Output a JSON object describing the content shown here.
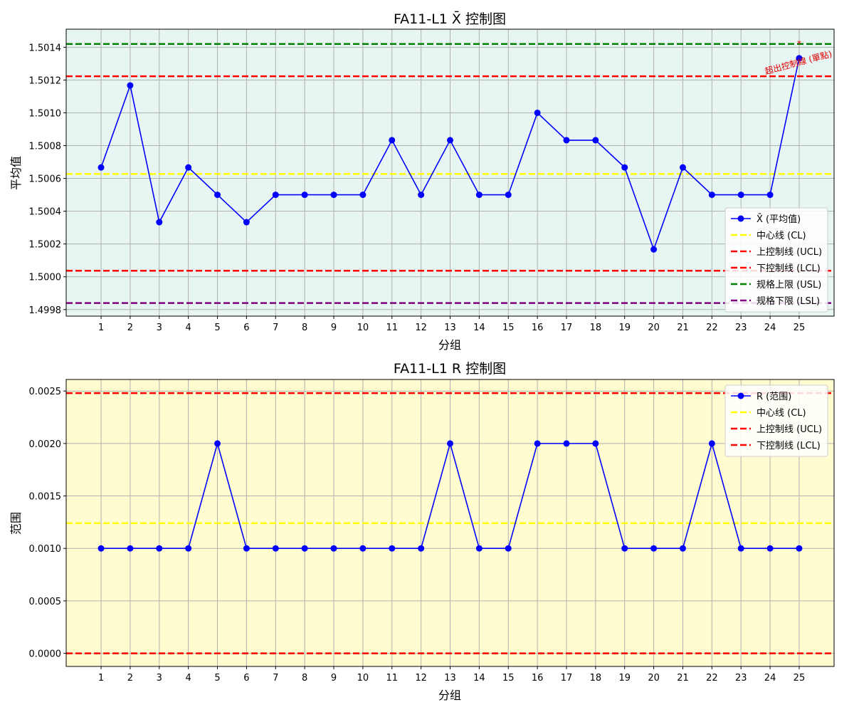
{
  "chart_data": [
    {
      "type": "line",
      "title": "FA11-L1 X̄ 控制图",
      "xlabel": "分组",
      "ylabel": "平均值",
      "background": "#e8f6f3",
      "x": [
        1,
        2,
        3,
        4,
        5,
        6,
        7,
        8,
        9,
        10,
        11,
        12,
        13,
        14,
        15,
        16,
        17,
        18,
        19,
        20,
        21,
        22,
        23,
        24,
        25
      ],
      "xlim": [
        -0.2,
        26.2
      ],
      "ylim": [
        1.49976,
        1.50151
      ],
      "yticks": [
        "1.4998",
        "1.5000",
        "1.5002",
        "1.5004",
        "1.5006",
        "1.5008",
        "1.5010",
        "1.5012",
        "1.5014"
      ],
      "grid": true,
      "series": [
        {
          "name": "X̄ (平均值)",
          "color": "#0000ff",
          "values": [
            1.500667,
            1.501167,
            1.500333,
            1.500667,
            1.5005,
            1.500333,
            1.5005,
            1.5005,
            1.5005,
            1.5005,
            1.500833,
            1.5005,
            1.500833,
            1.5005,
            1.5005,
            1.501,
            1.500833,
            1.500833,
            1.500667,
            1.500167,
            1.500667,
            1.5005,
            1.5005,
            1.5005,
            1.501333
          ]
        }
      ],
      "lines": [
        {
          "name": "中心线 (CL)",
          "value": 1.500627,
          "color": "#ffff00"
        },
        {
          "name": "上控制线 (UCL)",
          "value": 1.501223,
          "color": "#ff0000"
        },
        {
          "name": "下控制线 (LCL)",
          "value": 1.500037,
          "color": "#ff0000"
        },
        {
          "name": "规格上限 (USL)",
          "value": 1.50142,
          "color": "#008000"
        },
        {
          "name": "规格下限 (LSL)",
          "value": 1.49984,
          "color": "#800080"
        }
      ],
      "legend": "lower-right",
      "annotations": [
        {
          "text": "超出控制線 (單點)",
          "x": 25,
          "y": 1.50125
        },
        {
          "text": "*",
          "x": 25,
          "y": 1.50143
        }
      ]
    },
    {
      "type": "line",
      "title": "FA11-L1 R 控制图",
      "xlabel": "分组",
      "ylabel": "范围",
      "background": "#fffcd0",
      "x": [
        1,
        2,
        3,
        4,
        5,
        6,
        7,
        8,
        9,
        10,
        11,
        12,
        13,
        14,
        15,
        16,
        17,
        18,
        19,
        20,
        21,
        22,
        23,
        24,
        25
      ],
      "xlim": [
        -0.2,
        26.2
      ],
      "ylim": [
        -0.000125,
        0.00261
      ],
      "yticks": [
        "0.0000",
        "0.0005",
        "0.0010",
        "0.0015",
        "0.0020",
        "0.0025"
      ],
      "grid": true,
      "series": [
        {
          "name": "R (范围)",
          "color": "#0000ff",
          "values": [
            0.001,
            0.001,
            0.001,
            0.001,
            0.002,
            0.001,
            0.001,
            0.001,
            0.001,
            0.001,
            0.001,
            0.001,
            0.002,
            0.001,
            0.001,
            0.002,
            0.002,
            0.002,
            0.001,
            0.001,
            0.001,
            0.002,
            0.001,
            0.001,
            0.001
          ]
        }
      ],
      "lines": [
        {
          "name": "中心线 (CL)",
          "value": 0.00124,
          "color": "#ffff00"
        },
        {
          "name": "上控制线 (UCL)",
          "value": 0.00248,
          "color": "#ff0000"
        },
        {
          "name": "下控制线 (LCL)",
          "value": 0.0,
          "color": "#ff0000"
        }
      ],
      "legend": "upper-right",
      "annotations": []
    }
  ]
}
